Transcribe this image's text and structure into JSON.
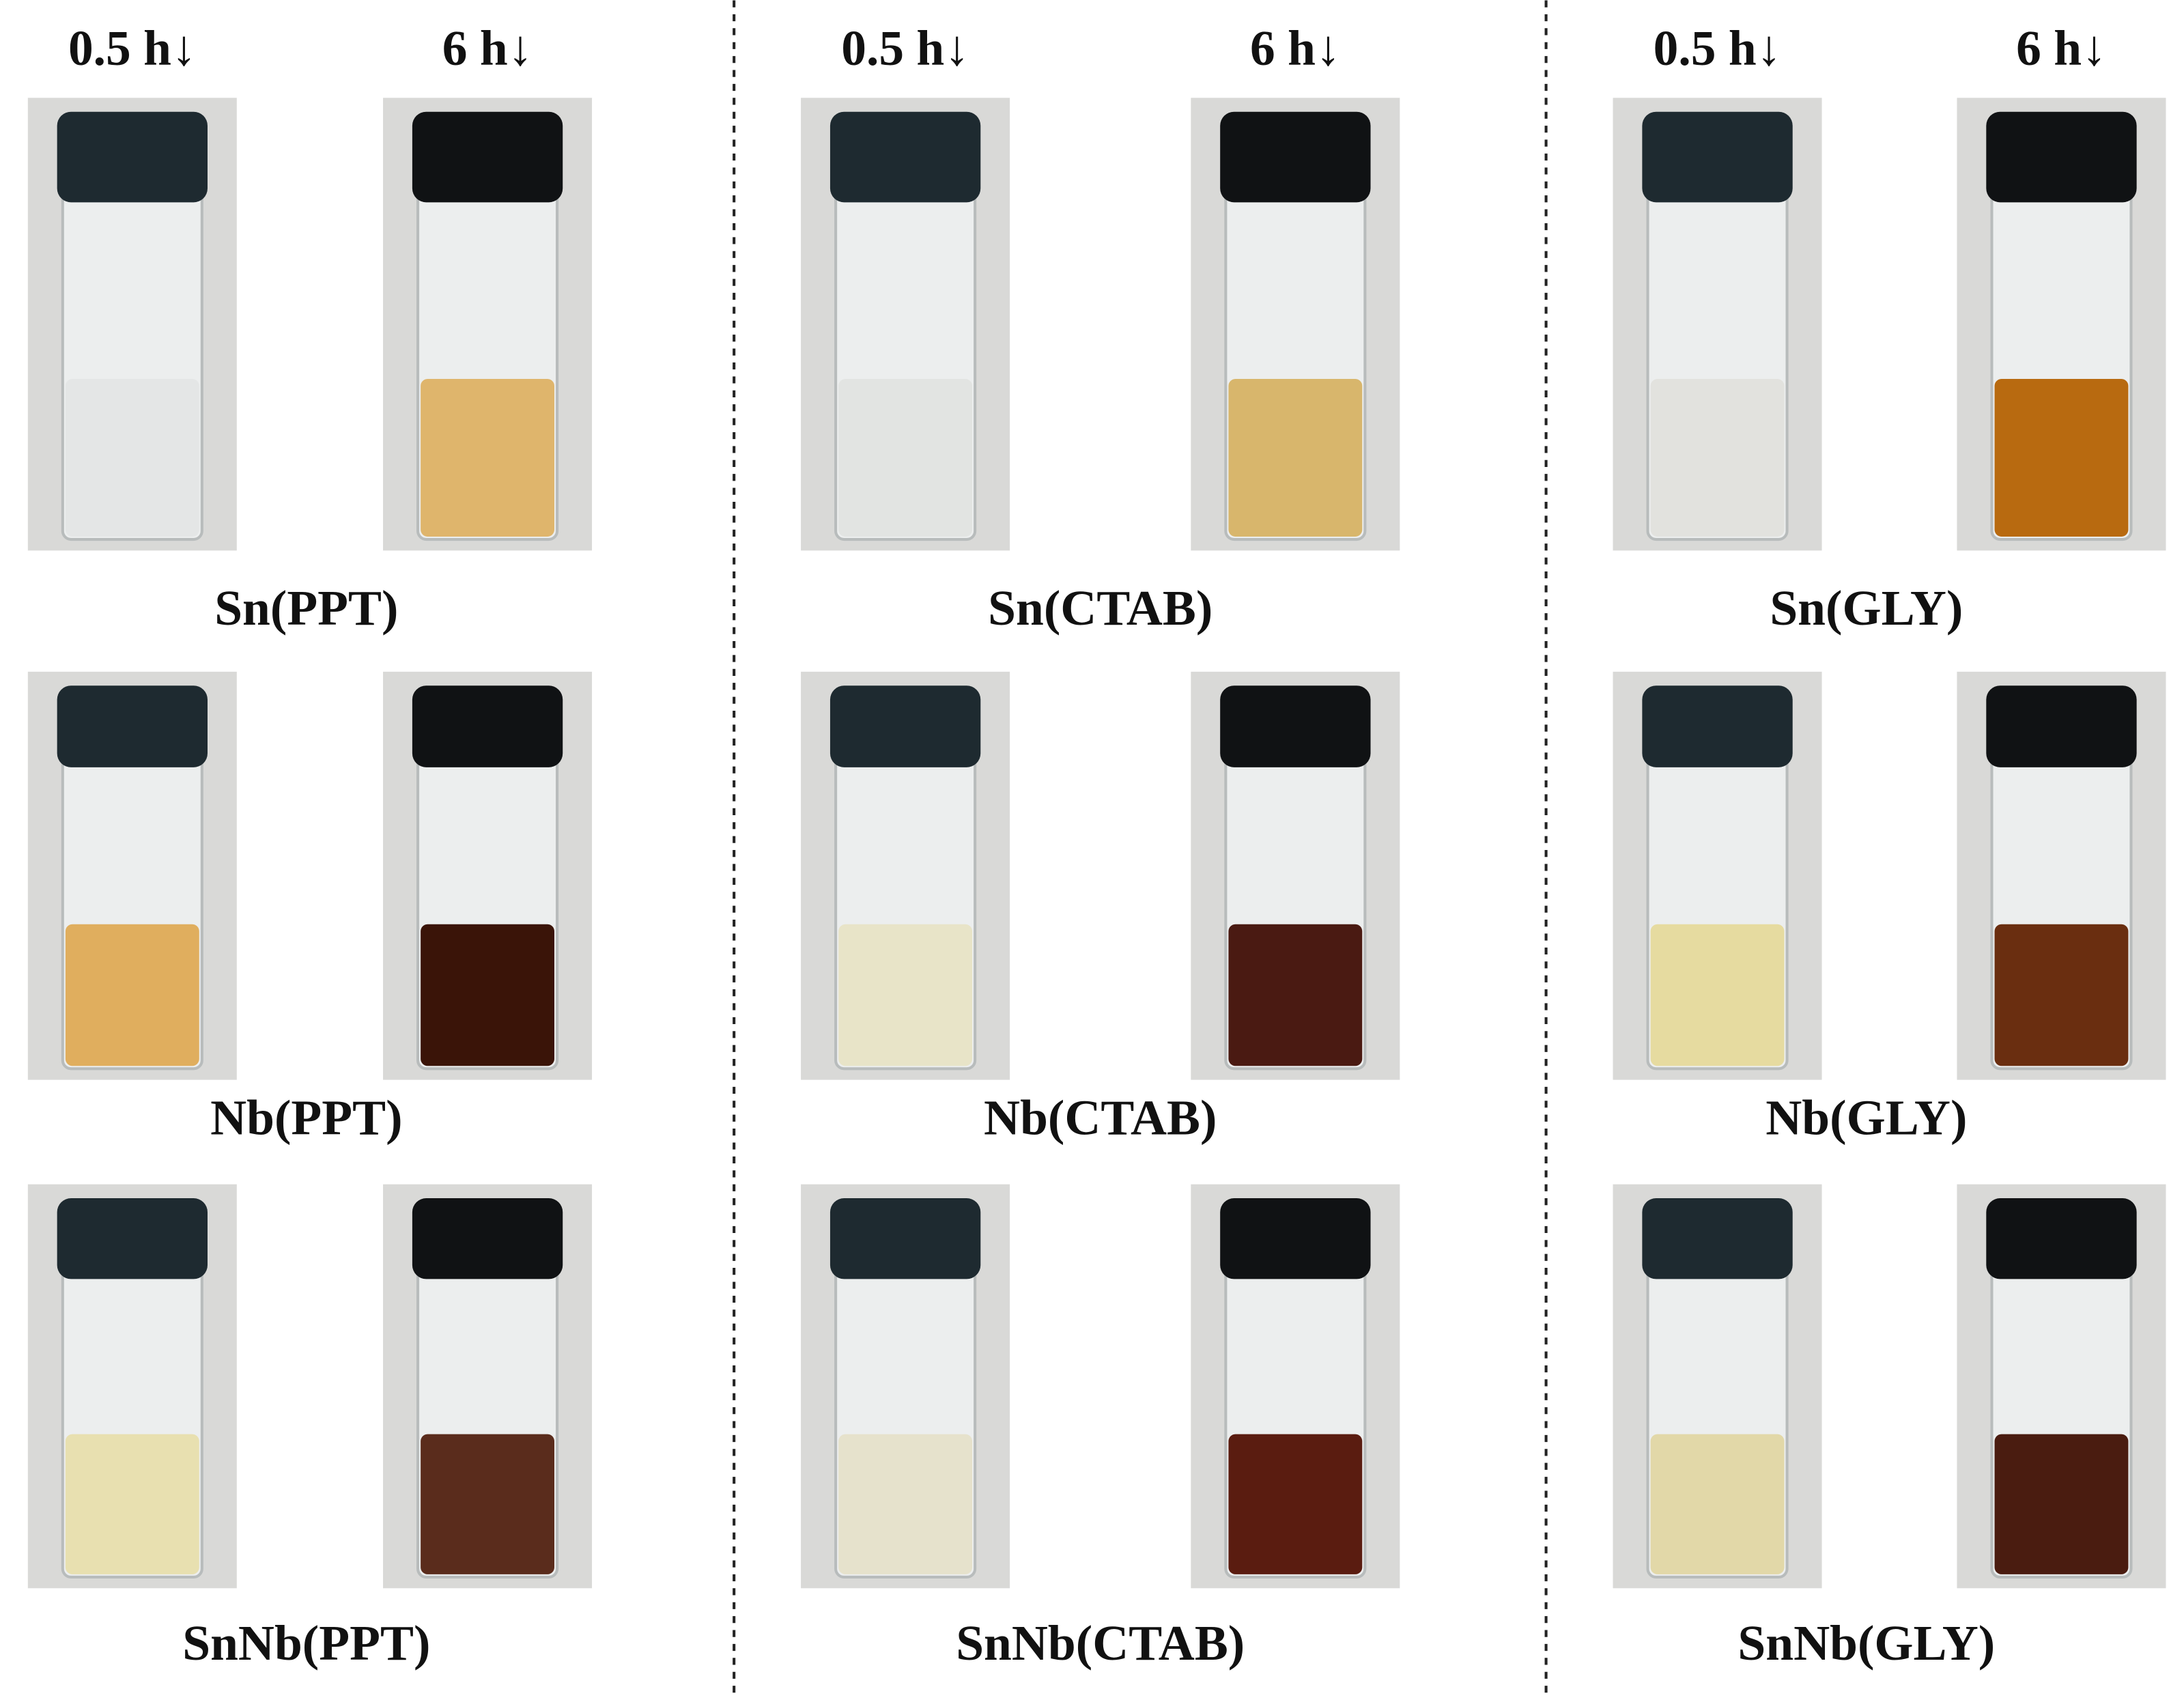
{
  "columns": [
    {
      "times": [
        "0.5 h↓",
        "6 h↓"
      ],
      "samples": [
        "Sn(PPT)",
        "Nb(PPT)",
        "SnNb(PPT)"
      ]
    },
    {
      "times": [
        "0.5 h↓",
        "6 h↓"
      ],
      "samples": [
        "Sn(CTAB)",
        "Nb(CTAB)",
        "SnNb(CTAB)"
      ]
    },
    {
      "times": [
        "0.5 h↓",
        "6 h↓"
      ],
      "samples": [
        "Sn(GLY)",
        "Nb(GLY)",
        "SnNb(GLY)"
      ]
    }
  ]
}
